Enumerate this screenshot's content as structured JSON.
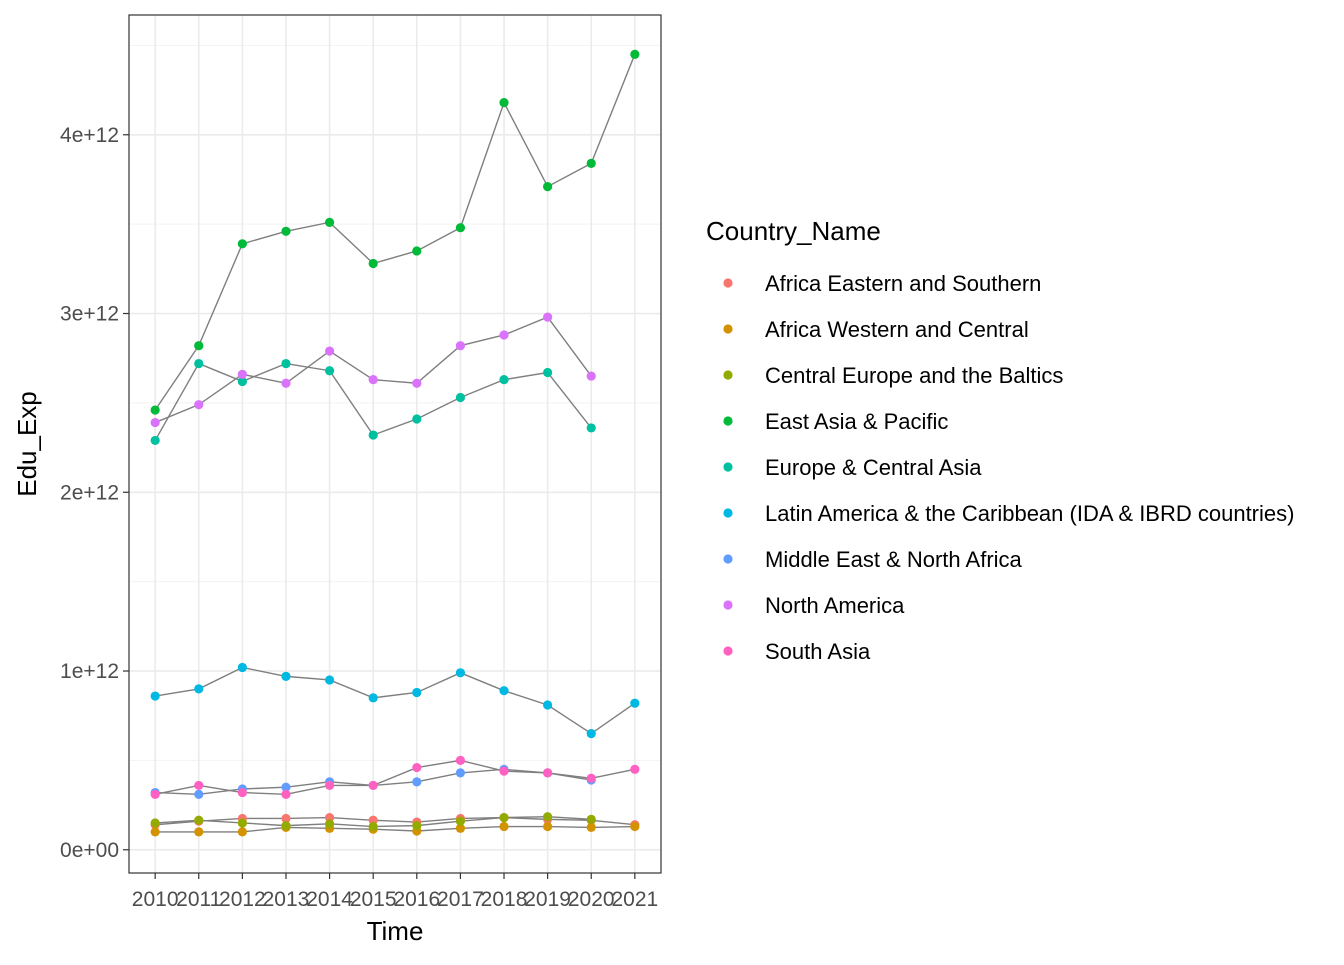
{
  "chart_data": {
    "type": "line",
    "title": "",
    "xlabel": "Time",
    "ylabel": "Edu_Exp",
    "x": [
      2010,
      2011,
      2012,
      2013,
      2014,
      2015,
      2016,
      2017,
      2018,
      2019,
      2020,
      2021
    ],
    "x_tick_labels": [
      "2010",
      "2011",
      "2012",
      "2013",
      "2014",
      "2015",
      "2016",
      "2017",
      "2018",
      "2019",
      "2020",
      "2021"
    ],
    "y_ticks": [
      0,
      1000000000000,
      2000000000000,
      3000000000000,
      4000000000000
    ],
    "y_tick_labels": [
      "0e+00",
      "1e+12",
      "2e+12",
      "3e+12",
      "4e+12"
    ],
    "xlim": [
      2009.4,
      2021.6
    ],
    "ylim": [
      -130000000000,
      4670000000000
    ],
    "grid": true,
    "line_color": "#7f7f7f",
    "legend": {
      "title": "Country_Name",
      "position": "right"
    },
    "series": [
      {
        "name": "Africa Eastern and Southern",
        "color": "#F8766D",
        "values": [
          140000000000.0,
          160000000000.0,
          175000000000.0,
          175000000000.0,
          180000000000.0,
          165000000000.0,
          155000000000.0,
          175000000000.0,
          180000000000.0,
          170000000000.0,
          165000000000.0,
          140000000000.0
        ]
      },
      {
        "name": "Africa Western and Central",
        "color": "#D39200",
        "values": [
          100000000000.0,
          100000000000.0,
          100000000000.0,
          125000000000.0,
          120000000000.0,
          115000000000.0,
          105000000000.0,
          120000000000.0,
          130000000000.0,
          130000000000.0,
          125000000000.0,
          130000000000.0
        ]
      },
      {
        "name": "Central Europe and the Baltics",
        "color": "#93AA00",
        "values": [
          150000000000.0,
          165000000000.0,
          150000000000.0,
          135000000000.0,
          145000000000.0,
          130000000000.0,
          135000000000.0,
          160000000000.0,
          180000000000.0,
          185000000000.0,
          170000000000.0,
          null
        ]
      },
      {
        "name": "East Asia & Pacific",
        "color": "#00BA38",
        "values": [
          2460000000000.0,
          2820000000000.0,
          3390000000000.0,
          3460000000000.0,
          3510000000000.0,
          3280000000000.0,
          3350000000000.0,
          3480000000000.0,
          4180000000000.0,
          3710000000000.0,
          3840000000000.0,
          4450000000000.0
        ]
      },
      {
        "name": "Europe & Central Asia",
        "color": "#00C19F",
        "values": [
          2290000000000.0,
          2720000000000.0,
          2620000000000.0,
          2720000000000.0,
          2680000000000.0,
          2320000000000.0,
          2410000000000.0,
          2530000000000.0,
          2630000000000.0,
          2670000000000.0,
          2360000000000.0,
          null
        ]
      },
      {
        "name": "Latin America & the Caribbean (IDA & IBRD countries)",
        "color": "#00B9E3",
        "values": [
          860000000000.0,
          900000000000.0,
          1020000000000.0,
          970000000000.0,
          950000000000.0,
          850000000000.0,
          880000000000.0,
          990000000000.0,
          890000000000.0,
          810000000000.0,
          650000000000.0,
          820000000000.0
        ]
      },
      {
        "name": "Middle East & North Africa",
        "color": "#619CFF",
        "values": [
          320000000000.0,
          310000000000.0,
          340000000000.0,
          350000000000.0,
          380000000000.0,
          360000000000.0,
          380000000000.0,
          430000000000.0,
          450000000000.0,
          430000000000.0,
          390000000000.0,
          null
        ]
      },
      {
        "name": "North America",
        "color": "#DB72FB",
        "values": [
          2390000000000.0,
          2490000000000.0,
          2660000000000.0,
          2610000000000.0,
          2790000000000.0,
          2630000000000.0,
          2610000000000.0,
          2820000000000.0,
          2880000000000.0,
          2980000000000.0,
          2650000000000.0,
          null
        ]
      },
      {
        "name": "South Asia",
        "color": "#FF61C3",
        "values": [
          310000000000.0,
          360000000000.0,
          320000000000.0,
          310000000000.0,
          360000000000.0,
          360000000000.0,
          460000000000.0,
          500000000000.0,
          440000000000.0,
          430000000000.0,
          400000000000.0,
          450000000000.0
        ]
      }
    ]
  }
}
